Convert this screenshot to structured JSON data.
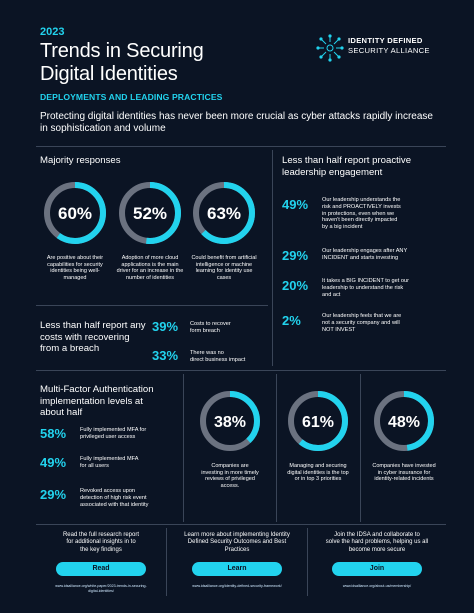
{
  "header": {
    "year": "2023",
    "title_line1": "Trends in Securing",
    "title_line2": "Digital Identities",
    "subtitle": "DEPLOYMENTS AND LEADING PRACTICES",
    "logo_line1": "IDENTITY DEFINED",
    "logo_line2": "SECURITY ALLIANCE",
    "intro": "Protecting digital identities has never been more crucial as cyber attacks rapidly increase in sophistication and volume"
  },
  "majority": {
    "heading": "Majority responses",
    "rings": [
      {
        "value": 60,
        "label": "60%",
        "text": "Are positive about their capabilities for security identities being well-managed"
      },
      {
        "value": 52,
        "label": "52%",
        "text": "Adoption of more cloud applications is the main driver for an increase in the number of identities"
      },
      {
        "value": 63,
        "label": "63%",
        "text": "Could benefit from artificial intelligence or machine learning for identity use cases"
      }
    ]
  },
  "recovering": {
    "heading_line1": "Less than half report any",
    "heading_line2": "costs with recovering",
    "heading_line3": "from a breach",
    "stats": [
      {
        "num": "39%",
        "text_line1": "Costs to recover",
        "text_line2": "form breach"
      },
      {
        "num": "33%",
        "text_line1": "There was no",
        "text_line2": "direct business impact"
      }
    ]
  },
  "proactive": {
    "heading_line1": "Less than half report proactive",
    "heading_line2": "leadership engagement",
    "stats": [
      {
        "num": "49%",
        "lines": [
          "Our leadership understands the",
          "risk and PROACTIVELY invests",
          "in protections, even when we",
          "haven't been directly impacted",
          "by a big incident"
        ]
      },
      {
        "num": "29%",
        "lines": [
          "Our leadership engages after ANY",
          "INCIDENT and starts investing"
        ]
      },
      {
        "num": "20%",
        "lines": [
          "It takes a BIG INCIDENT to get our",
          "leadership to understand the risk",
          "and act"
        ]
      },
      {
        "num": "2%",
        "lines": [
          "Our leadership feels that we are",
          "not a security company and will",
          "NOT INVEST"
        ]
      }
    ]
  },
  "mfa": {
    "heading_line1": "Multi-Factor Authentication",
    "heading_line2": "implementation levels at",
    "heading_line3": "about half",
    "stats": [
      {
        "num": "58%",
        "lines": [
          "Fully implemented MFA for",
          "privileged user access"
        ]
      },
      {
        "num": "49%",
        "lines": [
          "Fully implemented MFA",
          "for all users"
        ]
      },
      {
        "num": "29%",
        "lines": [
          "Revoked access upon",
          "detection of high risk event",
          "associated with that identity"
        ]
      }
    ]
  },
  "bottom_rings": [
    {
      "value": 38,
      "label": "38%",
      "lines": [
        "Companies are",
        "investing in more timely",
        "reviews of privileged",
        "access."
      ]
    },
    {
      "value": 61,
      "label": "61%",
      "lines": [
        "Managing and securing",
        "digital identities is the top",
        "or in top 3 priorities"
      ]
    },
    {
      "value": 48,
      "label": "48%",
      "lines": [
        "Companies have invested",
        "in cyber insurance for",
        "identity-related incidents"
      ]
    }
  ],
  "cta": [
    {
      "lines": [
        "Read the full research report",
        "for additional insights in to",
        "the key findings"
      ],
      "button": "Read",
      "url_lines": [
        "www.idsalliance.org/white-paper/2023-trends-in-securing-",
        "digital-identities/"
      ]
    },
    {
      "lines": [
        "Learn more about implementing Identity",
        "Defined Security Outcomes and Best",
        "Practices"
      ],
      "button": "Learn",
      "url_lines": [
        "www.idsalliance.org/identity-defined-security-framework/"
      ]
    },
    {
      "lines": [
        "Join the IDSA and collaborate to",
        "solve the hard problems, helping us all",
        "become more secure"
      ],
      "button": "Join",
      "url_lines": [
        "www.idsalliance.org/about-us/membership/"
      ]
    }
  ],
  "colors": {
    "accent": "#22d3ee",
    "background": "#0b1424",
    "ring_track": "#6b7280"
  }
}
